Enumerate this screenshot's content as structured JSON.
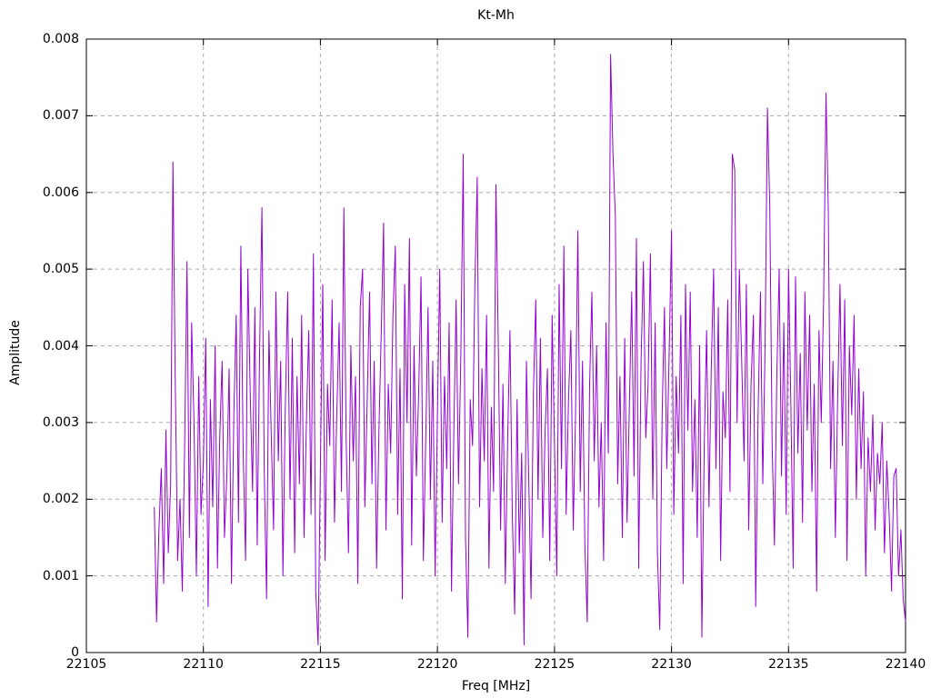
{
  "page": {
    "background": "#ffffff"
  },
  "chart_data": {
    "type": "line",
    "title": "Kt-Mh",
    "xlabel": "Freq [MHz]",
    "ylabel": "Amplitude",
    "xlim": [
      22105,
      22140
    ],
    "ylim": [
      0,
      0.008
    ],
    "x_tick_values": [
      22105,
      22110,
      22115,
      22120,
      22125,
      22130,
      22135,
      22140
    ],
    "x_tick_labels": [
      "22105",
      "22110",
      "22115",
      "22120",
      "22125",
      "22130",
      "22135",
      "22140"
    ],
    "y_tick_values": [
      0,
      0.001,
      0.002,
      0.003,
      0.004,
      0.005,
      0.006,
      0.007,
      0.008
    ],
    "y_tick_labels": [
      "0",
      "0.001",
      "0.002",
      "0.003",
      "0.004",
      "0.005",
      "0.006",
      "0.007",
      "0.008"
    ],
    "grid": true,
    "legend": "none",
    "line_color": "#9400d3",
    "grid_color": "#aaaaaa",
    "frame_color": "#000000",
    "series": [
      {
        "name": "Kt-Mh",
        "x_start": 22107.9,
        "x_step": 0.1,
        "y_scale": 0.0001,
        "y": [
          19,
          4,
          16,
          24,
          9,
          29,
          13,
          22,
          64,
          35,
          12,
          20,
          8,
          27,
          51,
          15,
          43,
          30,
          10,
          36,
          18,
          25,
          41,
          6,
          33,
          19,
          40,
          11,
          28,
          38,
          15,
          23,
          37,
          9,
          31,
          44,
          17,
          53,
          26,
          12,
          50,
          34,
          21,
          45,
          14,
          39,
          58,
          24,
          7,
          42,
          28,
          16,
          47,
          25,
          38,
          10,
          32,
          47,
          20,
          41,
          13,
          36,
          22,
          44,
          15,
          30,
          42,
          18,
          52,
          8,
          1,
          24,
          48,
          12,
          35,
          27,
          46,
          17,
          31,
          43,
          21,
          58,
          28,
          13,
          40,
          25,
          36,
          9,
          45,
          50,
          19,
          33,
          47,
          22,
          38,
          11,
          29,
          42,
          56,
          16,
          35,
          26,
          44,
          53,
          18,
          37,
          7,
          48,
          30,
          54,
          14,
          40,
          23,
          34,
          49,
          12,
          28,
          45,
          20,
          38,
          10,
          31,
          50,
          17,
          36,
          24,
          43,
          8,
          29,
          46,
          22,
          39,
          65,
          15,
          2,
          33,
          27,
          48,
          62,
          19,
          37,
          25,
          44,
          11,
          32,
          21,
          61,
          40,
          16,
          35,
          9,
          28,
          42,
          18,
          5,
          33,
          13,
          26,
          1,
          38,
          23,
          7,
          34,
          46,
          20,
          41,
          15,
          29,
          37,
          12,
          44,
          27,
          10,
          48,
          24,
          53,
          18,
          33,
          42,
          16,
          31,
          55,
          21,
          38,
          14,
          4,
          35,
          47,
          25,
          40,
          19,
          30,
          12,
          43,
          26,
          78,
          65,
          57,
          22,
          36,
          15,
          41,
          17,
          32,
          47,
          23,
          54,
          11,
          38,
          51,
          28,
          35,
          52,
          20,
          43,
          13,
          3,
          31,
          45,
          24,
          39,
          55,
          18,
          36,
          26,
          44,
          9,
          48,
          29,
          47,
          21,
          33,
          15,
          40,
          2,
          27,
          42,
          19,
          37,
          50,
          24,
          45,
          12,
          34,
          28,
          46,
          21,
          65,
          63,
          30,
          50,
          38,
          25,
          48,
          16,
          35,
          44,
          6,
          31,
          47,
          22,
          40,
          71,
          58,
          27,
          14,
          36,
          50,
          23,
          43,
          18,
          50,
          32,
          11,
          49,
          26,
          39,
          17,
          47,
          29,
          44,
          21,
          35,
          8,
          42,
          30,
          46,
          73,
          58,
          24,
          38,
          15,
          33,
          48,
          27,
          46,
          12,
          40,
          31,
          44,
          20,
          37,
          24,
          34,
          10,
          28,
          21,
          31,
          16,
          26,
          22,
          30,
          13,
          25,
          18,
          8,
          23,
          24,
          10,
          16,
          7,
          4
        ]
      }
    ]
  }
}
